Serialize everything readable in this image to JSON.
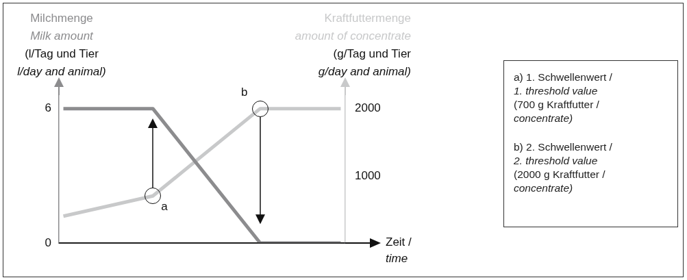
{
  "chart_data": {
    "type": "line",
    "xlabel": "Zeit /\ntime",
    "ylabel": "Milchmenge\nMilk amount\n(l/Tag und Tier\nl/day and animal)",
    "y2label": "Kraftfuttermenge\namount of concentrate\n(g/Tag und Tier\ng/day and animal)",
    "categories": [
      null,
      null,
      null,
      null,
      null,
      null,
      null,
      null,
      null,
      null,
      null,
      null,
      null,
      null,
      null,
      null,
      null,
      null,
      null,
      null,
      null,
      null,
      null,
      null,
      null,
      null,
      null,
      null,
      null,
      null,
      null,
      null
    ],
    "series": [
      {
        "color": "#8c8c8e",
        "values": [
          6,
          null,
          null,
          null,
          null,
          null,
          null,
          null,
          null,
          null,
          6,
          null,
          null,
          null,
          null,
          null,
          null,
          null,
          null,
          null,
          null,
          null,
          0,
          null,
          null,
          null,
          null,
          null,
          null,
          null,
          null,
          0
        ]
      },
      {
        "color": "#c8c9ca",
        "axis": "y2",
        "values": [
          400,
          null,
          null,
          null,
          null,
          null,
          null,
          null,
          null,
          null,
          700,
          null,
          null,
          null,
          null,
          null,
          null,
          null,
          null,
          null,
          null,
          null,
          2000,
          null,
          null,
          null,
          null,
          null,
          null,
          null,
          null,
          2000
        ]
      }
    ],
    "ylim": [
      0,
      6.6
    ],
    "yticks": [
      0,
      6
    ],
    "y2lim": [
      0,
      2200
    ],
    "y2ticks": [
      1000,
      2000
    ],
    "grid": false,
    "legend": false,
    "line_style": "solid",
    "annotations": [
      "a",
      "b",
      "a) 1. Schwellenwert /\n1. threshold value\n(700 g Kraftfutter /\nconcentrate)",
      "b) 2. Schwellenwert /\n2. threshold value\n(2000 g Kraftfutter /\nconcentrate)"
    ]
  }
}
